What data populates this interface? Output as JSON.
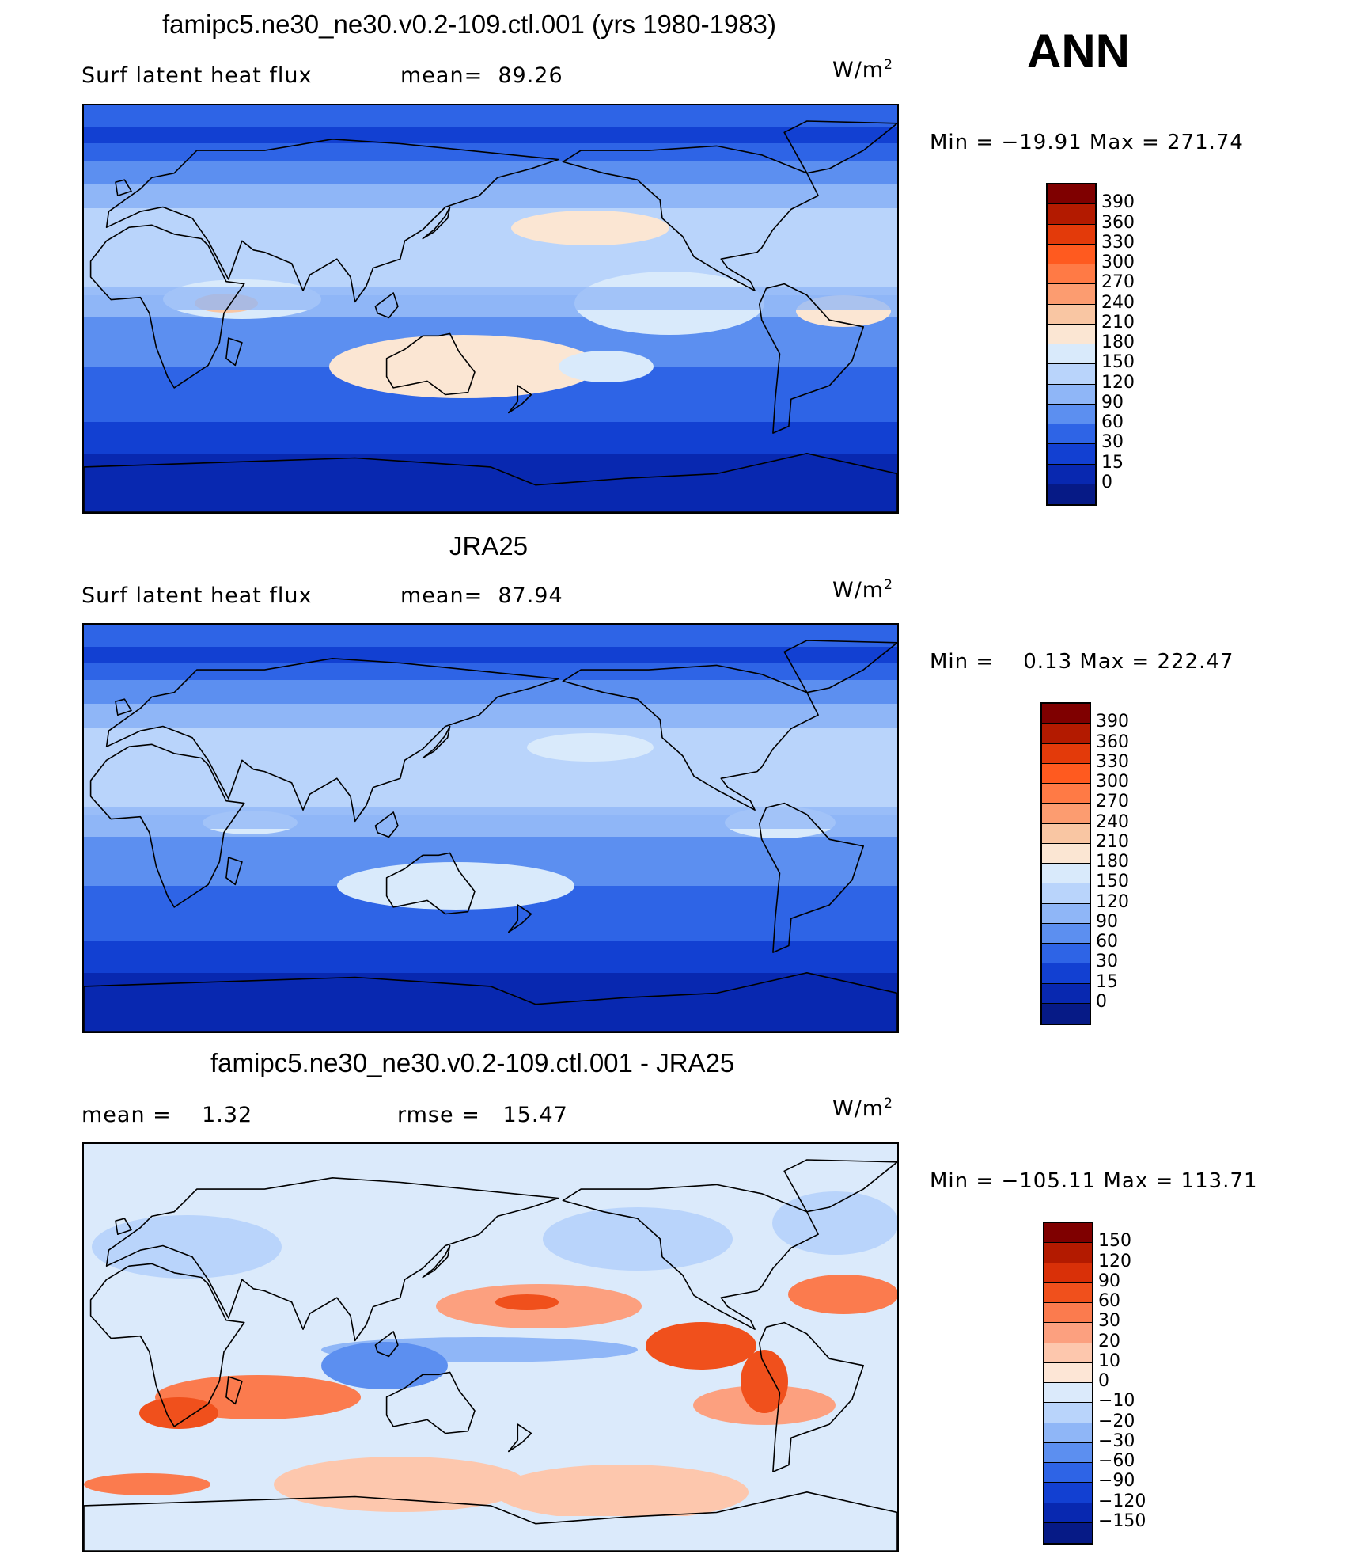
{
  "season": "ANN",
  "panels": [
    {
      "id": "model",
      "title": "famipc5.ne30_ne30.v0.2-109.ctl.001 (yrs 1980-1983)",
      "left_label": "Surf latent heat flux",
      "mid_label": "mean=  89.26",
      "units_base": "W/m",
      "units_exp": "2",
      "minmax": "Min = −19.91 Max = 271.74",
      "colorbar": {
        "labels": [
          "390",
          "360",
          "330",
          "300",
          "270",
          "240",
          "210",
          "180",
          "150",
          "120",
          "90",
          "60",
          "30",
          "15",
          "0"
        ],
        "colors": [
          "#7f0000",
          "#b31a00",
          "#e33a0a",
          "#ff5a1f",
          "#ff7a45",
          "#fc9c70",
          "#f9c6a3",
          "#fbe6d3",
          "#d9eafb",
          "#b9d4fb",
          "#8fb6f7",
          "#5c8ff0",
          "#2e64e6",
          "#1240d2",
          "#0828b0",
          "#061a86"
        ]
      },
      "field": {
        "mean": 89.26,
        "min": -19.91,
        "max": 271.74
      }
    },
    {
      "id": "obs",
      "title": "JRA25",
      "left_label": "Surf latent heat flux",
      "mid_label": "mean=  87.94",
      "units_base": "W/m",
      "units_exp": "2",
      "minmax": "Min =    0.13 Max = 222.47",
      "colorbar": {
        "labels": [
          "390",
          "360",
          "330",
          "300",
          "270",
          "240",
          "210",
          "180",
          "150",
          "120",
          "90",
          "60",
          "30",
          "15",
          "0"
        ],
        "colors": [
          "#7f0000",
          "#b31a00",
          "#e33a0a",
          "#ff5a1f",
          "#ff7a45",
          "#fc9c70",
          "#f9c6a3",
          "#fbe6d3",
          "#d9eafb",
          "#b9d4fb",
          "#8fb6f7",
          "#5c8ff0",
          "#2e64e6",
          "#1240d2",
          "#0828b0",
          "#061a86"
        ]
      },
      "field": {
        "mean": 87.94,
        "min": 0.13,
        "max": 222.47
      }
    },
    {
      "id": "diff",
      "title": "famipc5.ne30_ne30.v0.2-109.ctl.001 - JRA25",
      "left_label": "mean =    1.32",
      "mid_label": "rmse =   15.47",
      "units_base": "W/m",
      "units_exp": "2",
      "minmax": "Min = −105.11 Max = 113.71",
      "colorbar": {
        "labels": [
          "150",
          "120",
          "90",
          "60",
          "30",
          "20",
          "10",
          "0",
          "−10",
          "−20",
          "−30",
          "−60",
          "−90",
          "−120",
          "−150"
        ],
        "colors": [
          "#7f0000",
          "#b31a00",
          "#d93008",
          "#f0501c",
          "#fb7b4e",
          "#fca07f",
          "#fdc7ad",
          "#fde6d6",
          "#dbeafb",
          "#b9d4fb",
          "#8fb6f7",
          "#5c8ff0",
          "#2e64e6",
          "#1240d2",
          "#0828b0",
          "#061a86"
        ]
      },
      "field": {
        "mean": 1.32,
        "rmse": 15.47,
        "min": -105.11,
        "max": 113.71
      }
    }
  ],
  "chart_data": [
    {
      "type": "heatmap",
      "title": "famipc5.ne30_ne30.v0.2-109.ctl.001 (yrs 1980-1983)",
      "variable": "Surf latent heat flux",
      "units": "W/m2",
      "mean": 89.26,
      "min": -19.91,
      "max": 271.74,
      "contour_levels": [
        0,
        15,
        30,
        60,
        90,
        120,
        150,
        180,
        210,
        240,
        270,
        300,
        330,
        360,
        390
      ]
    },
    {
      "type": "heatmap",
      "title": "JRA25",
      "variable": "Surf latent heat flux",
      "units": "W/m2",
      "mean": 87.94,
      "min": 0.13,
      "max": 222.47,
      "contour_levels": [
        0,
        15,
        30,
        60,
        90,
        120,
        150,
        180,
        210,
        240,
        270,
        300,
        330,
        360,
        390
      ]
    },
    {
      "type": "heatmap",
      "title": "famipc5.ne30_ne30.v0.2-109.ctl.001 - JRA25",
      "units": "W/m2",
      "mean": 1.32,
      "rmse": 15.47,
      "min": -105.11,
      "max": 113.71,
      "contour_levels": [
        -150,
        -120,
        -90,
        -60,
        -30,
        -20,
        -10,
        0,
        10,
        20,
        30,
        60,
        90,
        120,
        150
      ]
    }
  ]
}
